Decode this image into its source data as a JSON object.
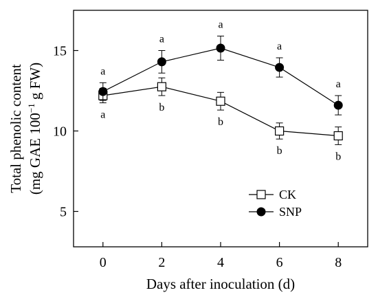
{
  "chart_data": {
    "type": "line",
    "xlabel": "Days after inoculation (d)",
    "ylabel_line1": "Total phenolic content",
    "ylabel_line2_prefix": "(mg GAE 100",
    "ylabel_line2_sup": "−1",
    "ylabel_line2_suffix": " g FW)",
    "x": [
      0,
      2,
      4,
      6,
      8
    ],
    "xticks": [
      "0",
      "2",
      "4",
      "6",
      "8"
    ],
    "xlim": [
      -1,
      9
    ],
    "yticks": [
      "5",
      "10",
      "15"
    ],
    "ytick_values": [
      5,
      10,
      15
    ],
    "ylim": [
      2.8,
      17.5
    ],
    "grid": false,
    "legend_position": "bottom-right",
    "series": [
      {
        "name": "CK",
        "marker": "open-square",
        "values": [
          12.2,
          12.75,
          11.85,
          10.0,
          9.7
        ],
        "errors": [
          0.45,
          0.55,
          0.55,
          0.5,
          0.55
        ],
        "labels": [
          "a",
          "b",
          "b",
          "b",
          "b"
        ],
        "label_side": "below"
      },
      {
        "name": "SNP",
        "marker": "filled-circle",
        "values": [
          12.45,
          14.3,
          15.15,
          13.95,
          11.6
        ],
        "errors": [
          0.55,
          0.7,
          0.75,
          0.6,
          0.6
        ],
        "labels": [
          "a",
          "a",
          "a",
          "a",
          "a"
        ],
        "label_side": "above"
      }
    ]
  }
}
